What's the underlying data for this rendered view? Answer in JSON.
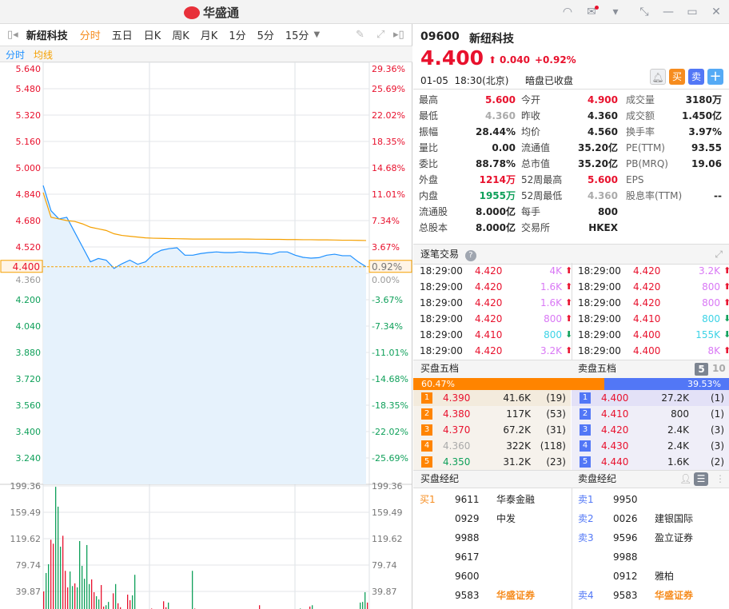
{
  "app": {
    "title": "华盛通",
    "window_icons": [
      "headset-icon",
      "mail-icon",
      "shirt-icon",
      "shrink-icon",
      "minimize-icon",
      "maximize-icon",
      "close-icon"
    ]
  },
  "toolbar": {
    "stock_name": "新纽科技",
    "tabs": [
      "分时",
      "五日",
      "日K",
      "周K",
      "月K",
      "1分",
      "5分",
      "15分"
    ],
    "active_tab": "分时"
  },
  "subtabs": {
    "intraday": "分时",
    "avg": "均线"
  },
  "chart_data": [
    {
      "type": "line",
      "price_ticks": [
        "5.640",
        "5.480",
        "5.320",
        "5.160",
        "5.000",
        "4.840",
        "4.680",
        "4.520",
        "4.360",
        "4.200",
        "4.040",
        "3.880",
        "3.720",
        "3.560",
        "3.400",
        "3.240"
      ],
      "pct_ticks": [
        "29.36%",
        "25.69%",
        "22.02%",
        "18.35%",
        "14.68%",
        "11.01%",
        "7.34%",
        "3.67%",
        "0.00%",
        "-3.67%",
        "-7.34%",
        "-11.01%",
        "-14.68%",
        "-18.35%",
        "-22.02%",
        "-25.69%"
      ],
      "ylim": [
        3.08,
        5.64
      ],
      "prev_close": 4.36,
      "current_price_label": "4.400",
      "current_pct_label": "0.92%",
      "series": [
        {
          "name": "分时",
          "color": "#1e90ff",
          "values": [
            4.893,
            4.74,
            4.69,
            4.7,
            4.61,
            4.52,
            4.43,
            4.45,
            4.44,
            4.39,
            4.418,
            4.44,
            4.415,
            4.43,
            4.476,
            4.5,
            4.51,
            4.515,
            4.47,
            4.47,
            4.48,
            4.486,
            4.49,
            4.486,
            4.486,
            4.49,
            4.486,
            4.486,
            4.48,
            4.476,
            4.49,
            4.49,
            4.47,
            4.457,
            4.452,
            4.455,
            4.47,
            4.476,
            4.467,
            4.467,
            4.43,
            4.4
          ]
        },
        {
          "name": "均线",
          "color": "#f5a000",
          "values": [
            4.85,
            4.7,
            4.69,
            4.68,
            4.675,
            4.66,
            4.64,
            4.63,
            4.62,
            4.6,
            4.59,
            4.585,
            4.58,
            4.575,
            4.573,
            4.572,
            4.571,
            4.57,
            4.569,
            4.568,
            4.568,
            4.568,
            4.568,
            4.568,
            4.568,
            4.568,
            4.568,
            4.567,
            4.567,
            4.566,
            4.566,
            4.565,
            4.565,
            4.564,
            4.564,
            4.563,
            4.563,
            4.562,
            4.561,
            4.561,
            4.56,
            4.559
          ]
        }
      ]
    },
    {
      "type": "bar",
      "volume_ticks": [
        "199.36",
        "159.49",
        "119.62",
        "79.74",
        "39.87"
      ],
      "ylim": [
        0,
        212
      ],
      "slots": 136,
      "bars": [
        [
          0,
          39.9,
          "up"
        ],
        [
          1,
          67.7,
          "down"
        ],
        [
          2,
          81,
          "down"
        ],
        [
          3,
          118,
          "up"
        ],
        [
          4,
          112,
          "up"
        ],
        [
          5,
          198,
          "down"
        ],
        [
          6,
          168,
          "down"
        ],
        [
          7,
          107.5,
          "down"
        ],
        [
          8,
          124,
          "up"
        ],
        [
          9,
          71,
          "up"
        ],
        [
          10,
          46,
          "up"
        ],
        [
          11,
          70,
          "down"
        ],
        [
          12,
          48,
          "down"
        ],
        [
          13,
          52,
          "up"
        ],
        [
          14,
          46,
          "down"
        ],
        [
          15,
          116,
          "down"
        ],
        [
          16,
          78.5,
          "down"
        ],
        [
          17,
          59,
          "down"
        ],
        [
          18,
          110,
          "down"
        ],
        [
          19,
          51,
          "down"
        ],
        [
          20,
          58,
          "up"
        ],
        [
          21,
          38.7,
          "up"
        ],
        [
          22,
          32.6,
          "down"
        ],
        [
          23,
          27.8,
          "down"
        ],
        [
          24,
          49.5,
          "up"
        ],
        [
          25,
          17,
          "up"
        ],
        [
          26,
          19,
          "down"
        ],
        [
          27,
          24,
          "down"
        ],
        [
          29,
          37,
          "up"
        ],
        [
          30,
          51,
          "down"
        ],
        [
          31,
          22,
          "up"
        ],
        [
          32,
          16,
          "up"
        ],
        [
          35,
          35,
          "up"
        ],
        [
          36,
          26.6,
          "up"
        ],
        [
          37,
          34,
          "down"
        ],
        [
          38,
          65,
          "down"
        ],
        [
          45,
          14,
          "up"
        ],
        [
          50,
          25,
          "up"
        ],
        [
          51,
          16,
          "up"
        ],
        [
          52,
          23,
          "down"
        ],
        [
          62,
          71,
          "down"
        ],
        [
          63,
          14,
          "up"
        ],
        [
          90,
          19,
          "up"
        ],
        [
          107,
          14,
          "down"
        ],
        [
          111,
          17,
          "up"
        ],
        [
          112,
          19,
          "down"
        ],
        [
          132,
          23,
          "down"
        ],
        [
          133,
          24,
          "down"
        ],
        [
          134,
          38.7,
          "down"
        ],
        [
          135,
          23,
          "up"
        ]
      ]
    }
  ],
  "quote": {
    "code": "09600",
    "name": "新纽科技",
    "price": "4.400",
    "change": "0.040",
    "change_pct": "+0.92%",
    "datetime": "01-05  18:30(北京)",
    "status": "暗盘已收盘",
    "buy_label": "买",
    "sell_label": "卖",
    "add_label": "+"
  },
  "stats": [
    [
      [
        "最高",
        "5.600",
        "red"
      ],
      [
        "今开",
        "4.900",
        "red"
      ],
      [
        "成交量",
        "3180万",
        ""
      ]
    ],
    [
      [
        "最低",
        "4.360",
        "grey"
      ],
      [
        "昨收",
        "4.360",
        ""
      ],
      [
        "成交额",
        "1.450亿",
        ""
      ]
    ],
    [
      [
        "振幅",
        "28.44%",
        ""
      ],
      [
        "均价",
        "4.560",
        ""
      ],
      [
        "换手率",
        "3.97%",
        ""
      ]
    ],
    [
      [
        "量比",
        "0.00",
        ""
      ],
      [
        "流通值",
        "35.20亿",
        ""
      ],
      [
        "PE(TTM)",
        "93.55",
        ""
      ]
    ],
    [
      [
        "委比",
        "88.78%",
        ""
      ],
      [
        "总市值",
        "35.20亿",
        ""
      ],
      [
        "PB(MRQ)",
        "19.06",
        ""
      ]
    ],
    [
      [
        "外盘",
        "1214万",
        "red"
      ],
      [
        "52周最高",
        "5.600",
        "red"
      ],
      [
        "EPS",
        "",
        ""
      ]
    ],
    [
      [
        "内盘",
        "1955万",
        "green"
      ],
      [
        "52周最低",
        "4.360",
        "grey"
      ],
      [
        "股息率(TTM)",
        "--",
        ""
      ]
    ],
    [
      [
        "流通股",
        "8.000亿",
        ""
      ],
      [
        "每手",
        "800",
        ""
      ],
      [
        "",
        "",
        " "
      ]
    ],
    [
      [
        "总股本",
        "8.000亿",
        ""
      ],
      [
        "交易所",
        "HKEX",
        ""
      ],
      [
        "",
        "",
        " "
      ]
    ]
  ],
  "ticks": {
    "title": "逐笔交易",
    "left": [
      [
        "18:29:00",
        "4.420",
        "4K",
        "up"
      ],
      [
        "18:29:00",
        "4.420",
        "1.6K",
        "up"
      ],
      [
        "18:29:00",
        "4.420",
        "1.6K",
        "up"
      ],
      [
        "18:29:00",
        "4.420",
        "800",
        "up"
      ],
      [
        "18:29:00",
        "4.410",
        "800",
        "down"
      ],
      [
        "18:29:00",
        "4.420",
        "3.2K",
        "up"
      ]
    ],
    "right": [
      [
        "18:29:00",
        "4.420",
        "3.2K",
        "up"
      ],
      [
        "18:29:00",
        "4.420",
        "800",
        "up"
      ],
      [
        "18:29:00",
        "4.420",
        "800",
        "up"
      ],
      [
        "18:29:00",
        "4.410",
        "800",
        "down"
      ],
      [
        "18:29:00",
        "4.400",
        "155K",
        "down"
      ],
      [
        "18:29:00",
        "4.400",
        "8K",
        "up"
      ]
    ]
  },
  "book": {
    "bid_title": "买盘五档",
    "ask_title": "卖盘五档",
    "depth_5": "5",
    "depth_10": "10",
    "bid_ratio": "60.47%",
    "ask_ratio": "39.53%",
    "bid_fraction": 0.6047,
    "bids": [
      [
        "1",
        "4.390",
        "41.6K",
        "(19)",
        "red"
      ],
      [
        "2",
        "4.380",
        "117K",
        "(53)",
        "red"
      ],
      [
        "3",
        "4.370",
        "67.2K",
        "(31)",
        "red"
      ],
      [
        "4",
        "4.360",
        "322K",
        "(118)",
        "grey"
      ],
      [
        "5",
        "4.350",
        "31.2K",
        "(23)",
        "green"
      ]
    ],
    "asks": [
      [
        "1",
        "4.400",
        "27.2K",
        "(1)",
        "red"
      ],
      [
        "2",
        "4.410",
        "800",
        "(1)",
        "red"
      ],
      [
        "3",
        "4.420",
        "2.4K",
        "(3)",
        "red"
      ],
      [
        "4",
        "4.430",
        "2.4K",
        "(3)",
        "red"
      ],
      [
        "5",
        "4.440",
        "1.6K",
        "(2)",
        "red"
      ]
    ]
  },
  "brokers": {
    "bid_title": "买盘经纪",
    "ask_title": "卖盘经纪",
    "bids": [
      [
        "买1",
        "9611",
        "华泰金融"
      ],
      [
        "",
        "0929",
        "中发"
      ],
      [
        "",
        "9988",
        ""
      ],
      [
        "",
        "9617",
        ""
      ],
      [
        "",
        "9600",
        ""
      ],
      [
        "",
        "9583",
        "华盛证券"
      ]
    ],
    "asks": [
      [
        "卖1",
        "9950",
        ""
      ],
      [
        "卖2",
        "0026",
        "建银国际"
      ],
      [
        "卖3",
        "9596",
        "盈立证券"
      ],
      [
        "",
        "9988",
        ""
      ],
      [
        "",
        "0912",
        "雅柏"
      ],
      [
        "卖4",
        "9583",
        "华盛证券"
      ]
    ],
    "highlight_broker": "华盛证券"
  }
}
